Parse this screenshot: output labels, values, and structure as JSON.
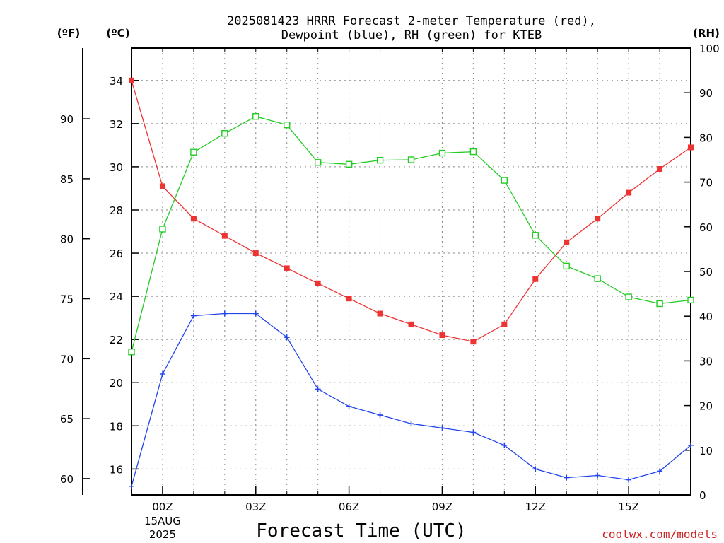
{
  "chart_data": {
    "type": "line",
    "title_lines": [
      "2025081423 HRRR Forecast 2-meter Temperature (red),",
      "Dewpoint (blue), RH (green) for KTEB"
    ],
    "xlabel": "Forecast Time (UTC)",
    "credit": "coolwx.com/models",
    "units": {
      "fahrenheit": "(ºF)",
      "celsius": "(ºC)",
      "rh": "(RH)"
    },
    "x": [
      -1,
      0,
      1,
      2,
      3,
      4,
      5,
      6,
      7,
      8,
      9,
      10,
      11,
      12,
      13,
      14,
      15,
      16,
      17
    ],
    "xlim": [
      -1,
      17
    ],
    "x_ticks": [
      {
        "x": 0,
        "label": "00Z",
        "sub": [
          "15AUG",
          "2025"
        ]
      },
      {
        "x": 3,
        "label": "03Z"
      },
      {
        "x": 6,
        "label": "06Z"
      },
      {
        "x": 9,
        "label": "09Z"
      },
      {
        "x": 12,
        "label": "12Z"
      },
      {
        "x": 15,
        "label": "15Z"
      }
    ],
    "celsius_axis": {
      "range": [
        14.8,
        35.5
      ],
      "ticks": [
        16,
        18,
        20,
        22,
        24,
        26,
        28,
        30,
        32,
        34
      ]
    },
    "fahrenheit_axis": {
      "ticks": [
        60,
        65,
        70,
        75,
        80,
        85,
        90
      ]
    },
    "rh_axis": {
      "range": [
        0,
        100
      ],
      "ticks": [
        0,
        10,
        20,
        30,
        40,
        50,
        60,
        70,
        80,
        90,
        100
      ]
    },
    "series": [
      {
        "name": "Temperature (red)",
        "axis": "celsius",
        "color": "#ee3333",
        "marker": "filled-square",
        "values": [
          34.0,
          29.1,
          27.6,
          26.8,
          26.0,
          25.3,
          24.6,
          23.9,
          23.2,
          22.7,
          22.2,
          21.9,
          22.7,
          24.8,
          26.5,
          27.6,
          28.8,
          29.9,
          30.9
        ]
      },
      {
        "name": "Dewpoint (blue)",
        "axis": "celsius",
        "color": "#2244ee",
        "marker": "plus",
        "values": [
          15.2,
          20.4,
          23.1,
          23.2,
          23.2,
          22.1,
          19.7,
          18.9,
          18.5,
          18.1,
          17.9,
          17.7,
          17.1,
          16.0,
          15.6,
          15.7,
          15.5,
          15.9,
          17.1
        ]
      },
      {
        "name": "RH (green)",
        "axis": "rh",
        "color": "#22cc22",
        "marker": "open-square",
        "values": [
          32.0,
          59.5,
          76.7,
          80.9,
          84.7,
          82.8,
          74.4,
          74.0,
          74.9,
          75.0,
          76.5,
          76.8,
          70.4,
          58.1,
          51.2,
          48.4,
          44.3,
          42.8,
          43.6
        ]
      }
    ]
  }
}
